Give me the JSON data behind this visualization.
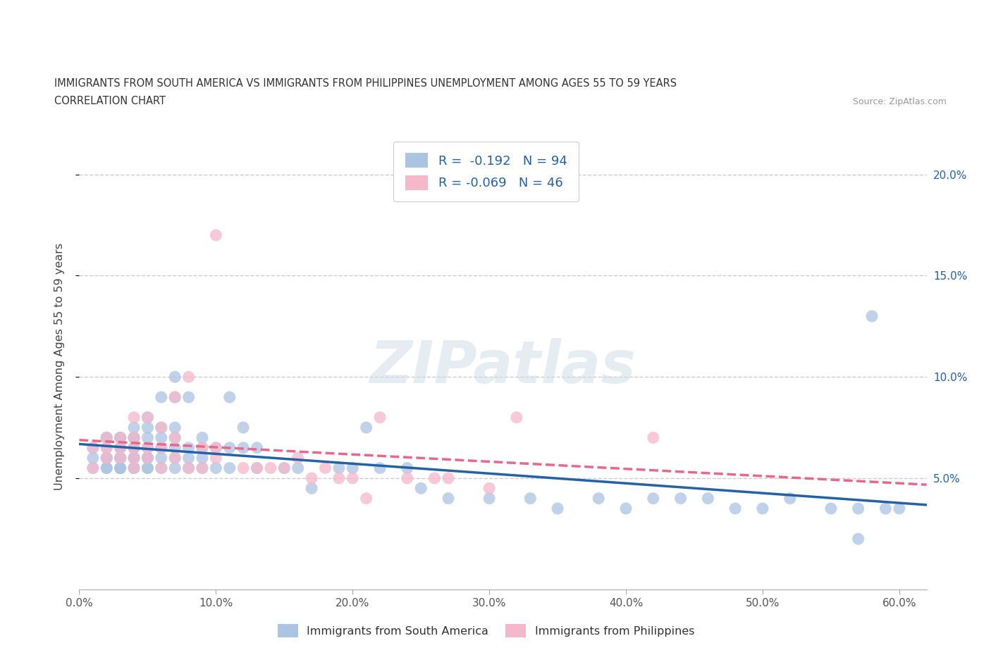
{
  "title_line1": "IMMIGRANTS FROM SOUTH AMERICA VS IMMIGRANTS FROM PHILIPPINES UNEMPLOYMENT AMONG AGES 55 TO 59 YEARS",
  "title_line2": "CORRELATION CHART",
  "source": "Source: ZipAtlas.com",
  "ylabel": "Unemployment Among Ages 55 to 59 years",
  "xlim": [
    0.0,
    0.62
  ],
  "ylim": [
    -0.005,
    0.215
  ],
  "xticks": [
    0.0,
    0.1,
    0.2,
    0.3,
    0.4,
    0.5,
    0.6
  ],
  "xticklabels": [
    "0.0%",
    "10.0%",
    "20.0%",
    "30.0%",
    "40.0%",
    "50.0%",
    "60.0%"
  ],
  "yticks_right": [
    0.05,
    0.1,
    0.15,
    0.2
  ],
  "ytick_right_labels": [
    "5.0%",
    "10.0%",
    "15.0%",
    "20.0%"
  ],
  "south_america_color": "#aac4e2",
  "south_america_line_color": "#2461a8",
  "philippines_color": "#f5b8cb",
  "philippines_line_color": "#e8678a",
  "south_america_R": -0.192,
  "south_america_N": 94,
  "philippines_R": -0.069,
  "philippines_N": 46,
  "legend_label_sa": "Immigrants from South America",
  "legend_label_ph": "Immigrants from Philippines",
  "watermark": "ZIPatlas",
  "sa_x": [
    0.01,
    0.01,
    0.01,
    0.02,
    0.02,
    0.02,
    0.02,
    0.02,
    0.02,
    0.02,
    0.03,
    0.03,
    0.03,
    0.03,
    0.03,
    0.03,
    0.03,
    0.03,
    0.03,
    0.03,
    0.04,
    0.04,
    0.04,
    0.04,
    0.04,
    0.04,
    0.04,
    0.04,
    0.04,
    0.05,
    0.05,
    0.05,
    0.05,
    0.05,
    0.05,
    0.05,
    0.05,
    0.06,
    0.06,
    0.06,
    0.06,
    0.06,
    0.06,
    0.07,
    0.07,
    0.07,
    0.07,
    0.07,
    0.07,
    0.07,
    0.08,
    0.08,
    0.08,
    0.08,
    0.09,
    0.09,
    0.09,
    0.09,
    0.1,
    0.1,
    0.11,
    0.11,
    0.11,
    0.12,
    0.12,
    0.13,
    0.13,
    0.15,
    0.16,
    0.17,
    0.19,
    0.2,
    0.21,
    0.22,
    0.24,
    0.25,
    0.27,
    0.3,
    0.33,
    0.35,
    0.38,
    0.4,
    0.42,
    0.44,
    0.46,
    0.48,
    0.5,
    0.52,
    0.55,
    0.57,
    0.58,
    0.59,
    0.57,
    0.6
  ],
  "sa_y": [
    0.06,
    0.055,
    0.065,
    0.055,
    0.06,
    0.065,
    0.07,
    0.055,
    0.06,
    0.07,
    0.055,
    0.06,
    0.065,
    0.07,
    0.06,
    0.055,
    0.065,
    0.06,
    0.07,
    0.055,
    0.055,
    0.06,
    0.065,
    0.07,
    0.075,
    0.055,
    0.06,
    0.065,
    0.07,
    0.055,
    0.06,
    0.065,
    0.07,
    0.075,
    0.08,
    0.055,
    0.06,
    0.06,
    0.065,
    0.07,
    0.075,
    0.09,
    0.055,
    0.055,
    0.06,
    0.065,
    0.07,
    0.075,
    0.09,
    0.1,
    0.055,
    0.06,
    0.065,
    0.09,
    0.055,
    0.06,
    0.065,
    0.07,
    0.055,
    0.065,
    0.055,
    0.065,
    0.09,
    0.065,
    0.075,
    0.055,
    0.065,
    0.055,
    0.055,
    0.045,
    0.055,
    0.055,
    0.075,
    0.055,
    0.055,
    0.045,
    0.04,
    0.04,
    0.04,
    0.035,
    0.04,
    0.035,
    0.04,
    0.04,
    0.04,
    0.035,
    0.035,
    0.04,
    0.035,
    0.035,
    0.13,
    0.035,
    0.02,
    0.035
  ],
  "ph_x": [
    0.01,
    0.01,
    0.02,
    0.02,
    0.02,
    0.03,
    0.03,
    0.03,
    0.04,
    0.04,
    0.04,
    0.04,
    0.04,
    0.05,
    0.05,
    0.05,
    0.06,
    0.06,
    0.06,
    0.07,
    0.07,
    0.07,
    0.08,
    0.08,
    0.09,
    0.09,
    0.1,
    0.1,
    0.1,
    0.12,
    0.13,
    0.14,
    0.15,
    0.16,
    0.17,
    0.18,
    0.19,
    0.2,
    0.21,
    0.22,
    0.24,
    0.26,
    0.27,
    0.3,
    0.32,
    0.42
  ],
  "ph_y": [
    0.055,
    0.065,
    0.06,
    0.065,
    0.07,
    0.06,
    0.065,
    0.07,
    0.055,
    0.06,
    0.065,
    0.07,
    0.08,
    0.06,
    0.065,
    0.08,
    0.055,
    0.065,
    0.075,
    0.06,
    0.07,
    0.09,
    0.055,
    0.1,
    0.055,
    0.065,
    0.06,
    0.065,
    0.17,
    0.055,
    0.055,
    0.055,
    0.055,
    0.06,
    0.05,
    0.055,
    0.05,
    0.05,
    0.04,
    0.08,
    0.05,
    0.05,
    0.05,
    0.045,
    0.08,
    0.07
  ]
}
